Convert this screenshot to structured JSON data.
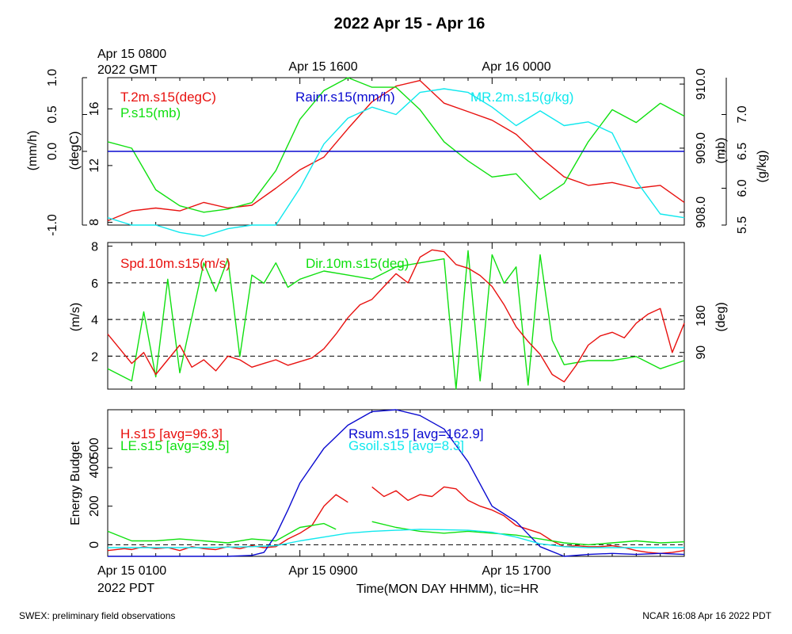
{
  "title": "2022 Apr 15 - Apr 16",
  "footer": {
    "left": "SWEX: preliminary field observations",
    "right": "NCAR 16:08 Apr 16 2022 PDT"
  },
  "colors": {
    "red": "#e8110f",
    "green": "#10e010",
    "blue": "#0a0ad0",
    "cyan": "#10e8ee",
    "black": "#000000"
  },
  "chart_data": [
    {
      "type": "line",
      "panel": "top",
      "top_axis": {
        "ticks": [
          {
            "hours": 0,
            "lines": [
              "Apr 15 0800",
              "2022 GMT"
            ]
          },
          {
            "hours": 8,
            "lines": [
              "Apr 15 1600"
            ]
          },
          {
            "hours": 16,
            "lines": [
              "Apr 16 0000"
            ]
          }
        ]
      },
      "x_range_hours": [
        0,
        24
      ],
      "axes": {
        "rain": {
          "label": "(mm/h)",
          "ticks": [
            "-1.0",
            "0.0",
            "0.5",
            "1.0"
          ],
          "range": [
            -1,
            1
          ]
        },
        "temp": {
          "label": "(degC)",
          "ticks": [
            "8",
            "12",
            "16"
          ],
          "range": [
            7.8,
            18.2
          ]
        },
        "pressure": {
          "label": "(mb)",
          "ticks": [
            "908.0",
            "909.0",
            "910.0"
          ],
          "range": [
            907.8,
            910.1
          ]
        },
        "mr": {
          "label": "(g/kg)",
          "ticks": [
            "5.5",
            "6.0",
            "6.5",
            "7.0"
          ],
          "range": [
            5.5,
            7.5
          ]
        }
      },
      "series": [
        {
          "name": "T.2m.s15(degC)",
          "color": "red",
          "axis": "temp",
          "x": [
            0,
            1,
            2,
            3,
            4,
            5,
            6,
            7,
            8,
            9,
            10,
            11,
            12,
            13,
            14,
            15,
            16,
            17,
            18,
            19,
            20,
            21,
            22,
            23,
            24
          ],
          "y": [
            8.1,
            8.8,
            9.0,
            8.8,
            9.4,
            9.0,
            9.2,
            10.4,
            11.7,
            12.6,
            14.6,
            16.5,
            17.6,
            18.0,
            16.4,
            15.8,
            15.2,
            14.2,
            12.6,
            11.2,
            10.6,
            10.8,
            10.4,
            10.6,
            9.4
          ]
        },
        {
          "name": "P.s15(mb)",
          "color": "green",
          "axis": "pressure",
          "x": [
            0,
            1,
            2,
            3,
            4,
            5,
            6,
            7,
            8,
            9,
            10,
            11,
            12,
            13,
            14,
            15,
            16,
            17,
            18,
            19,
            20,
            21,
            22,
            23,
            24
          ],
          "y": [
            909.1,
            909.0,
            908.35,
            908.1,
            908.0,
            908.05,
            908.15,
            908.65,
            909.45,
            909.9,
            910.1,
            909.95,
            909.95,
            909.6,
            909.1,
            908.8,
            908.55,
            908.6,
            908.2,
            908.45,
            909.1,
            909.6,
            909.4,
            909.7,
            909.5
          ]
        },
        {
          "name": "Rainr.s15(mm/h)",
          "color": "blue",
          "axis": "rain",
          "x": [
            0,
            24
          ],
          "y": [
            0,
            0
          ]
        },
        {
          "name": "MR.2m.s15(g/kg)",
          "color": "cyan",
          "axis": "mr",
          "x": [
            0,
            1,
            2,
            3,
            4,
            5,
            6,
            7,
            8,
            9,
            10,
            11,
            12,
            13,
            14,
            15,
            16,
            17,
            18,
            19,
            20,
            21,
            22,
            23,
            24
          ],
          "y": [
            5.6,
            5.5,
            5.5,
            5.4,
            5.35,
            5.45,
            5.5,
            5.5,
            6.0,
            6.6,
            6.95,
            7.1,
            7.0,
            7.3,
            7.35,
            7.3,
            7.1,
            6.85,
            7.05,
            6.85,
            6.9,
            6.75,
            6.1,
            5.65,
            5.6
          ]
        }
      ]
    },
    {
      "type": "line",
      "panel": "middle",
      "x_range_hours": [
        0,
        24
      ],
      "axes": {
        "speed": {
          "label": "(m/s)",
          "ticks": [
            "2",
            "4",
            "6",
            "8"
          ],
          "range": [
            0.2,
            8.2
          ]
        },
        "dir": {
          "label": "(deg)",
          "ticks": [
            "90",
            "180"
          ],
          "range": [
            0,
            360
          ]
        }
      },
      "gridlines": [
        2,
        4,
        6
      ],
      "series": [
        {
          "name": "Spd.10m.s15(m/s)",
          "color": "red",
          "axis": "speed",
          "x": [
            0,
            0.5,
            1,
            1.5,
            2,
            2.5,
            3,
            3.5,
            4,
            4.5,
            5,
            5.5,
            6,
            6.5,
            7,
            7.5,
            8,
            8.5,
            9,
            9.5,
            10,
            10.5,
            11,
            11.5,
            12,
            12.5,
            13,
            13.5,
            14,
            14.5,
            15,
            15.5,
            16,
            16.5,
            17,
            17.5,
            18,
            18.5,
            19,
            19.5,
            20,
            20.5,
            21,
            21.5,
            22,
            22.5,
            23,
            23.5,
            24
          ],
          "y": [
            3.2,
            2.4,
            1.6,
            2.2,
            1.0,
            1.8,
            2.6,
            1.4,
            1.8,
            1.2,
            2.0,
            1.8,
            1.4,
            1.6,
            1.8,
            1.5,
            1.7,
            1.9,
            2.4,
            3.2,
            4.1,
            4.8,
            5.1,
            5.8,
            6.5,
            6.0,
            7.4,
            7.8,
            7.7,
            7.0,
            6.8,
            6.4,
            5.8,
            4.8,
            3.6,
            2.8,
            2.1,
            1.0,
            0.6,
            1.5,
            2.6,
            3.1,
            3.3,
            3.0,
            3.8,
            4.3,
            4.6,
            2.2,
            3.8
          ]
        },
        {
          "name": "Dir.10m.s15(deg)",
          "color": "green",
          "axis": "dir",
          "x": [
            0,
            1,
            1.5,
            2,
            2.5,
            3,
            4,
            4.5,
            5,
            5.5,
            6,
            6.5,
            7,
            7.5,
            8,
            9,
            10,
            11,
            12,
            13,
            14,
            14.5,
            15,
            15.5,
            16,
            16.5,
            17,
            17.5,
            18,
            18.5,
            19,
            20,
            21,
            22,
            23,
            24
          ],
          "y": [
            50,
            20,
            190,
            30,
            270,
            40,
            310,
            240,
            320,
            80,
            280,
            260,
            310,
            250,
            270,
            290,
            280,
            270,
            300,
            310,
            320,
            0,
            340,
            20,
            330,
            260,
            300,
            10,
            330,
            120,
            60,
            70,
            70,
            80,
            50,
            70
          ]
        }
      ]
    },
    {
      "type": "line",
      "panel": "bottom",
      "x_axis": {
        "label": "Time(MON DAY HHMM), tic=HR",
        "ticks": [
          {
            "hours": 0,
            "lines": [
              "Apr 15 0100",
              "2022 PDT"
            ]
          },
          {
            "hours": 8,
            "lines": [
              "Apr 15 0900"
            ]
          },
          {
            "hours": 16,
            "lines": [
              "Apr 15 1700"
            ]
          }
        ]
      },
      "x_range_hours": [
        0,
        24
      ],
      "y_axis": {
        "label": "Energy Budget",
        "ticks": [
          "0",
          "200",
          "400",
          "500"
        ],
        "range": [
          -60,
          700
        ]
      },
      "gridlines": [
        0
      ],
      "series": [
        {
          "name": "H.s15 [avg=96.3]",
          "color": "red",
          "x": [
            0,
            0.7,
            1,
            1.5,
            2,
            2.5,
            3,
            3.5,
            4,
            4.5,
            5,
            5.5,
            6,
            6.5,
            7,
            7.5,
            8,
            8.5,
            9,
            9.5,
            10,
            10.5,
            11,
            11.5,
            12,
            12.5,
            13,
            13.5,
            14,
            14.5,
            15,
            15.5,
            16,
            16.5,
            17,
            17.5,
            18,
            18.5,
            19,
            19.5,
            20,
            20.5,
            21,
            21.5,
            22,
            22.5,
            23,
            23.5,
            24
          ],
          "y": [
            -30,
            -20,
            -25,
            -10,
            -20,
            -15,
            -30,
            -10,
            -20,
            -25,
            -10,
            -20,
            -5,
            -15,
            -10,
            30,
            60,
            100,
            200,
            260,
            220,
            null,
            300,
            250,
            280,
            230,
            260,
            250,
            300,
            290,
            230,
            200,
            180,
            150,
            100,
            80,
            60,
            20,
            -10,
            -5,
            -10,
            -10,
            -5,
            -15,
            -30,
            -40,
            -45,
            -40,
            -30
          ]
        },
        {
          "name": "LE.s15 [avg=39.5]",
          "color": "green",
          "x": [
            0,
            1,
            2,
            3,
            4,
            5,
            6,
            7,
            8,
            9,
            9.5,
            10,
            11,
            12,
            13,
            14,
            15,
            16,
            17,
            18,
            19,
            20,
            21,
            22,
            23,
            24
          ],
          "y": [
            70,
            20,
            20,
            30,
            20,
            10,
            30,
            20,
            90,
            110,
            80,
            null,
            120,
            90,
            70,
            60,
            70,
            60,
            50,
            30,
            10,
            0,
            10,
            20,
            10,
            15
          ]
        },
        {
          "name": "Rsum.s15 [avg=162.9]",
          "color": "blue",
          "x": [
            0,
            1,
            2,
            3,
            4,
            5,
            6,
            6.5,
            7,
            7.5,
            8,
            9,
            10,
            11,
            12,
            13,
            14,
            15,
            16,
            17,
            18,
            19,
            20,
            21,
            22,
            23,
            24
          ],
          "y": [
            -60,
            -60,
            -60,
            -60,
            -60,
            -60,
            -55,
            -40,
            50,
            180,
            320,
            500,
            620,
            690,
            700,
            670,
            600,
            430,
            200,
            120,
            -10,
            -60,
            -50,
            -45,
            -50,
            -45,
            -50
          ]
        },
        {
          "name": "Gsoil.s15 [avg=8.3]",
          "color": "cyan",
          "x": [
            0,
            2,
            4,
            6,
            7,
            8,
            9,
            10,
            11,
            12,
            13,
            14,
            15,
            16,
            17,
            18,
            19,
            20,
            22,
            24
          ],
          "y": [
            -15,
            -15,
            -15,
            -10,
            -5,
            20,
            40,
            60,
            70,
            75,
            80,
            78,
            75,
            65,
            40,
            5,
            -10,
            -15,
            -15,
            -15
          ]
        }
      ]
    }
  ]
}
